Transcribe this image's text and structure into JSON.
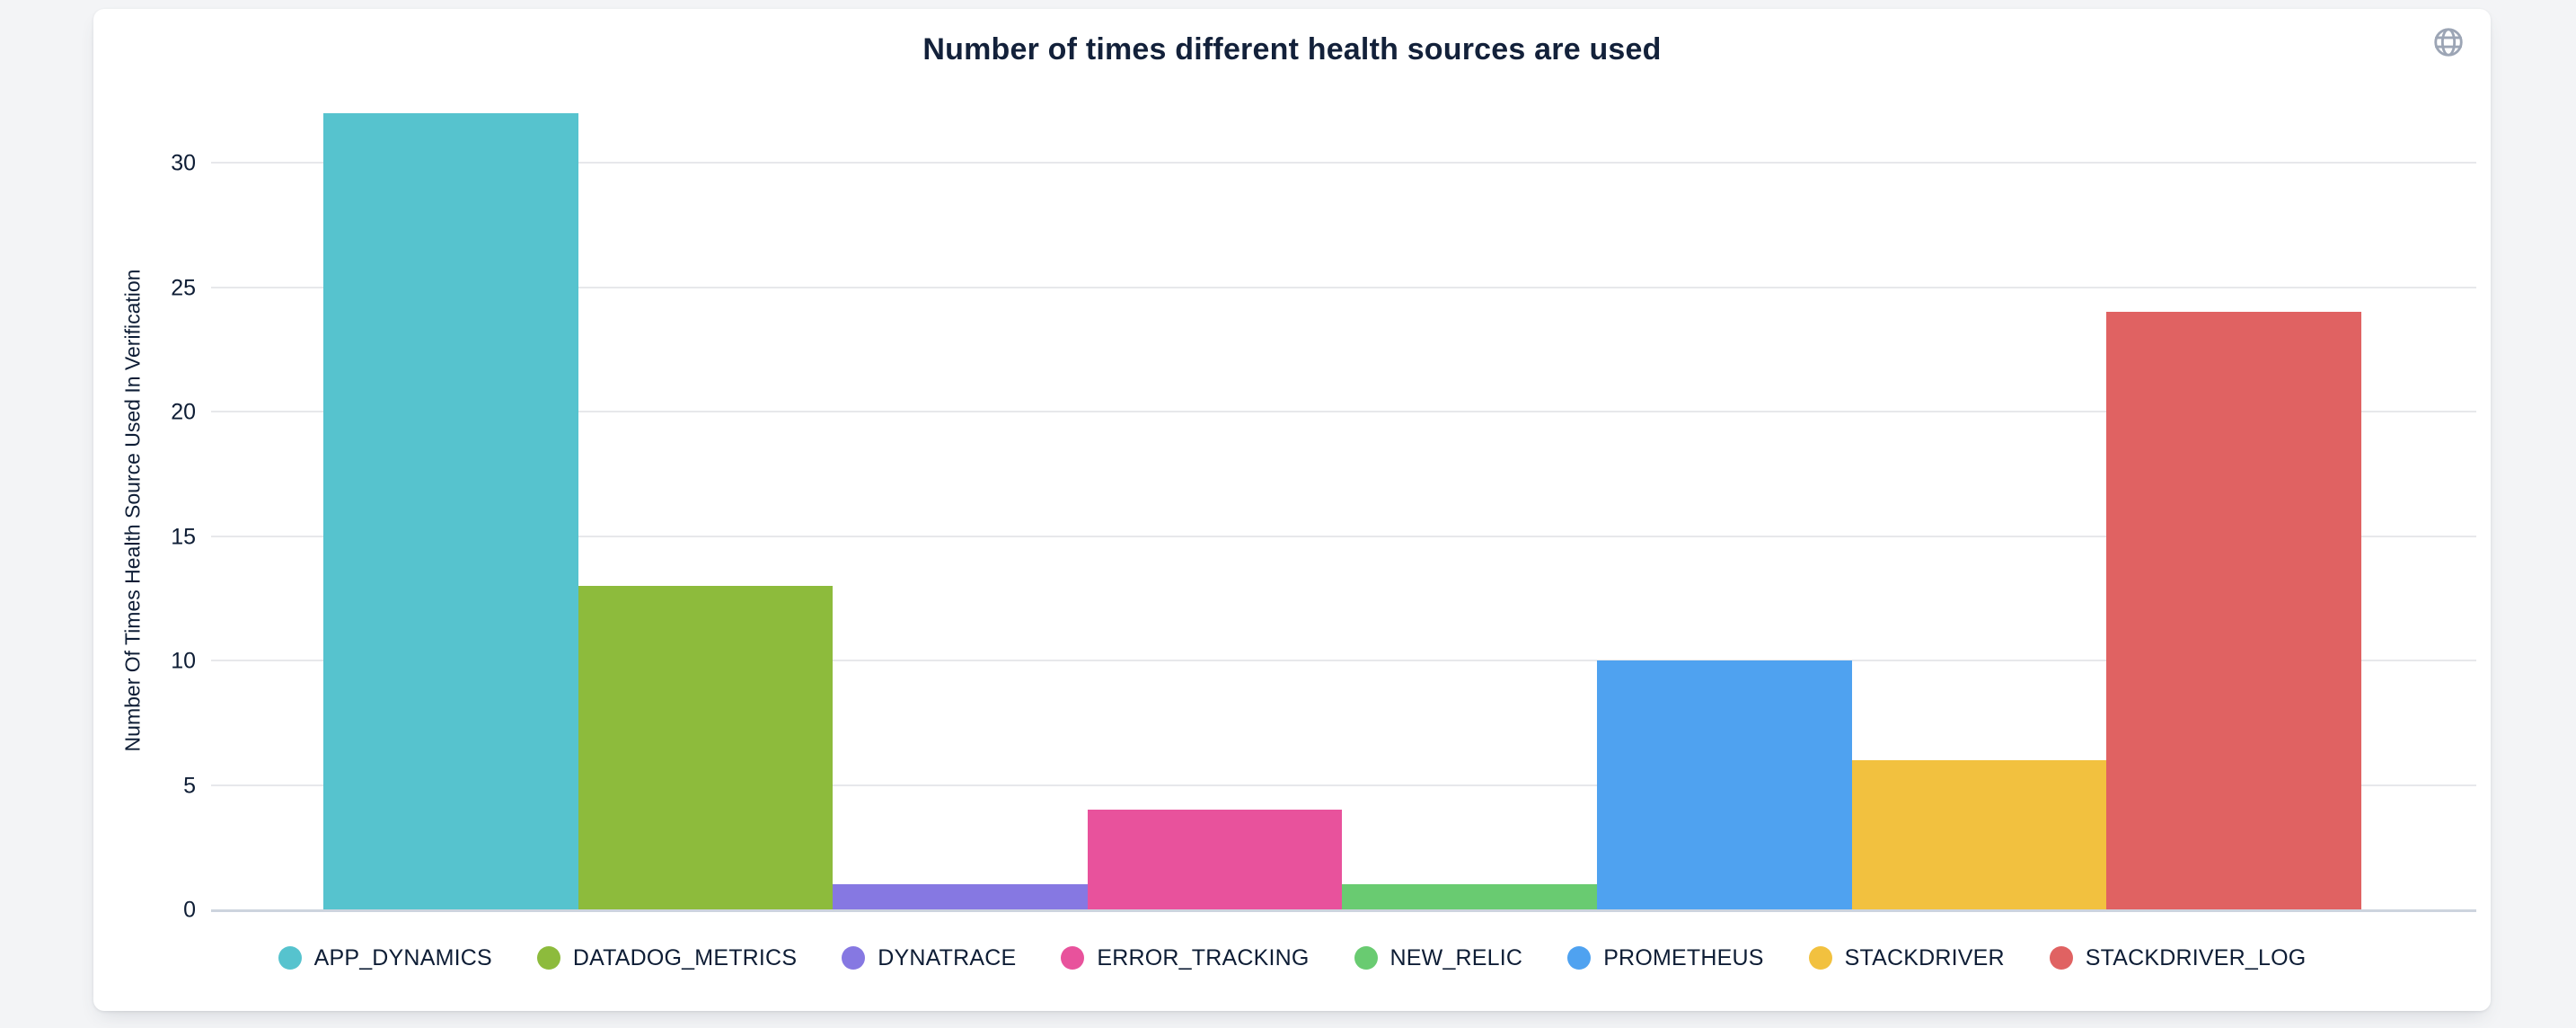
{
  "page": {
    "background_color": "#f3f4f6"
  },
  "card": {
    "background_color": "#ffffff"
  },
  "icons": {
    "globe": "globe-icon",
    "globe_color": "#9ca5b5"
  },
  "chart_data": {
    "type": "bar",
    "title": "Number of times different health sources are used",
    "xlabel": "",
    "ylabel": "Number Of Times Health Source Used In Verification",
    "categories": [
      "APP_DYNAMICS",
      "DATADOG_METRICS",
      "DYNATRACE",
      "ERROR_TRACKING",
      "NEW_RELIC",
      "PROMETHEUS",
      "STACKDRIVER",
      "STACKDRIVER_LOG"
    ],
    "values": [
      32,
      13,
      1,
      4,
      1,
      10,
      6,
      24
    ],
    "colors": [
      "#56C3CE",
      "#8DBB3C",
      "#8678E2",
      "#E8529C",
      "#69CB71",
      "#4FA2F0",
      "#F2C13F",
      "#E06262"
    ],
    "ylim": [
      0,
      32
    ],
    "yticks": [
      0,
      5,
      10,
      15,
      20,
      25,
      30
    ],
    "grid": true,
    "legend_position": "bottom",
    "text_color": "#0e1d35",
    "gridline_color": "#e7e8eb",
    "axis_line_color": "#cdd4de"
  }
}
